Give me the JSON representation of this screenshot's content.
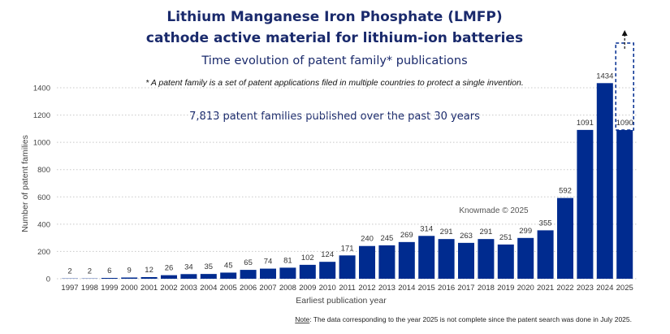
{
  "header": {
    "title_line1": "Lithium Manganese Iron Phosphate (LMFP)",
    "title_line2": "cathode active material for lithium-ion batteries",
    "subtitle": "Time evolution of patent family* publications",
    "footnote": "* A patent family is a set of patent applications filed in multiple countries to protect a single invention.",
    "summary": "7,813 patent families published over the past 30 years",
    "watermark": "Knowmade © 2025"
  },
  "note": {
    "label": "Note",
    "text": ": The data corresponding to the year 2025 is not complete since the patent search was done in July 2025."
  },
  "chart_data": {
    "type": "bar",
    "xlabel": "Earliest publication year",
    "ylabel": "Number of patent families",
    "ylim": [
      0,
      1400
    ],
    "yticks": [
      0,
      200,
      400,
      600,
      800,
      1000,
      1200,
      1400
    ],
    "grid": true,
    "categories": [
      "1997",
      "1998",
      "1999",
      "2000",
      "2001",
      "2002",
      "2003",
      "2004",
      "2005",
      "2006",
      "2007",
      "2008",
      "2009",
      "2010",
      "2011",
      "2012",
      "2013",
      "2014",
      "2015",
      "2016",
      "2017",
      "2018",
      "2019",
      "2020",
      "2021",
      "2022",
      "2023",
      "2024",
      "2025"
    ],
    "values": [
      2,
      2,
      6,
      9,
      12,
      26,
      34,
      35,
      45,
      65,
      74,
      81,
      102,
      124,
      171,
      240,
      245,
      269,
      314,
      291,
      263,
      291,
      251,
      299,
      355,
      592,
      1091,
      1434,
      1090
    ],
    "incomplete_category": "2025",
    "bar_color": "#002b8f",
    "text_color": "#1a2a6c"
  }
}
